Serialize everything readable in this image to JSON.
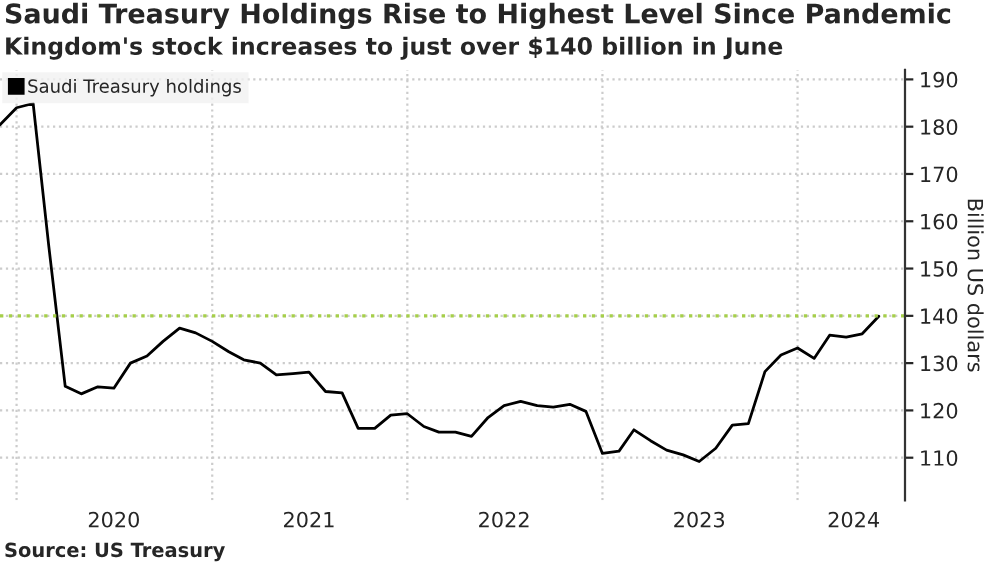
{
  "chart_data": {
    "type": "line",
    "title": "Saudi Treasury Holdings Rise to Highest Level Since Pandemic",
    "subtitle": "Kingdom's stock increases to just over $140 billion in June",
    "ylabel": "Billion US dollars",
    "annotations": [
      "Source: US Treasury"
    ],
    "x": [
      "2019-12",
      "2020-01",
      "2020-02",
      "2020-03",
      "2020-04",
      "2020-05",
      "2020-06",
      "2020-07",
      "2020-08",
      "2020-09",
      "2020-10",
      "2020-11",
      "2020-12",
      "2021-01",
      "2021-02",
      "2021-03",
      "2021-04",
      "2021-05",
      "2021-06",
      "2021-07",
      "2021-08",
      "2021-09",
      "2021-10",
      "2021-11",
      "2021-12",
      "2022-01",
      "2022-02",
      "2022-03",
      "2022-04",
      "2022-05",
      "2022-06",
      "2022-07",
      "2022-08",
      "2022-09",
      "2022-10",
      "2022-11",
      "2022-12",
      "2023-01",
      "2023-02",
      "2023-03",
      "2023-04",
      "2023-05",
      "2023-06",
      "2023-07",
      "2023-08",
      "2023-09",
      "2023-10",
      "2023-11",
      "2023-12",
      "2024-01",
      "2024-02",
      "2024-03",
      "2024-04",
      "2024-05",
      "2024-06"
    ],
    "series": [
      {
        "name": "Saudi Treasury holdings",
        "color": "#000000",
        "values": [
          180.4,
          184,
          184.9,
          155,
          125.1,
          123.5,
          125,
          124.7,
          130,
          131.5,
          134.6,
          137.4,
          136.4,
          134.6,
          132.4,
          130.7,
          130,
          127.5,
          127.8,
          128.1,
          124,
          123.7,
          116.2,
          116.2,
          119,
          119.3,
          116.6,
          115.4,
          115.4,
          114.5,
          118.5,
          121,
          121.9,
          121,
          120.7,
          121.3,
          119.8,
          110.9,
          111.4,
          115.9,
          113.6,
          111.6,
          110.6,
          109.2,
          112,
          116.9,
          117.2,
          128.2,
          131.7,
          133.2,
          131,
          135.9,
          135.5,
          136.2,
          139.9
        ]
      }
    ],
    "ref_lines": [
      {
        "axis": "y",
        "value": 140,
        "color": "#a6cf4a",
        "line_style": "dotted"
      }
    ],
    "xlim": [
      "2019-12-01",
      "2024-07-20"
    ],
    "xticks": [
      {
        "value": "2020-01-01",
        "label": null
      },
      {
        "value": "2020-07-01",
        "label": "2020"
      },
      {
        "value": "2021-01-01",
        "label": null
      },
      {
        "value": "2021-07-01",
        "label": "2021"
      },
      {
        "value": "2022-01-01",
        "label": null
      },
      {
        "value": "2022-07-01",
        "label": "2022"
      },
      {
        "value": "2023-01-01",
        "label": null
      },
      {
        "value": "2023-07-01",
        "label": "2023"
      },
      {
        "value": "2024-01-01",
        "label": null
      },
      {
        "value": "2024-04-15",
        "label": "2024"
      }
    ],
    "ylim": [
      101,
      192
    ],
    "yticks": [
      110,
      120,
      130,
      140,
      150,
      160,
      170,
      180,
      190
    ],
    "grid": true,
    "legend": "top left",
    "marker": "none",
    "line_style": "solid"
  }
}
